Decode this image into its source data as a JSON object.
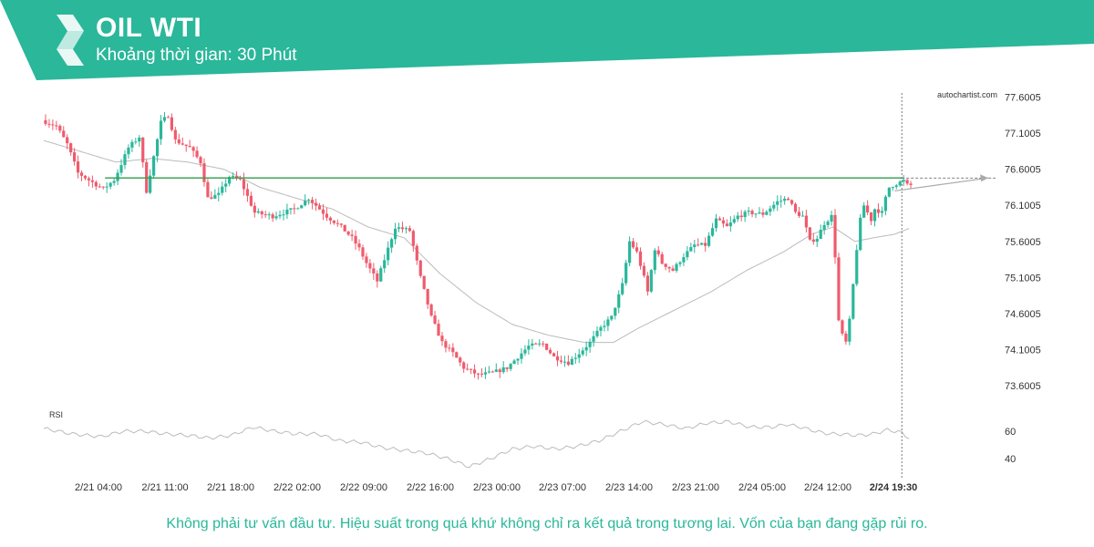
{
  "header": {
    "title": "OIL WTI",
    "subtitle": "Khoảng thời gian: 30 Phút",
    "band_color": "#2ab79a",
    "logo_icon": "autochartist-s-logo"
  },
  "watermark": "autochartist.com",
  "disclaimer": "Không phải tư vấn đầu tư. Hiệu suất trong quá khứ không chỉ ra kết quả trong tương lai. Vốn của bạn đang gặp rủi ro.",
  "colors": {
    "up": "#2ab79a",
    "down": "#ef5b6c",
    "level_line": "#2e9e4a",
    "moving_average": "#bbbbbb",
    "rsi": "#bbbbbb",
    "projection": "#aaaaaa"
  },
  "chart_data": [
    {
      "type": "candlestick",
      "y_ticks": [
        "77.6005",
        "77.1005",
        "76.6005",
        "76.1005",
        "75.6005",
        "75.1005",
        "74.6005",
        "74.1005",
        "73.6005"
      ],
      "ylim": [
        73.45,
        77.62
      ],
      "x_ticks": [
        "2/21 04:00",
        "2/21 11:00",
        "2/21 18:00",
        "2/22 02:00",
        "2/22 09:00",
        "2/22 16:00",
        "2/23 00:00",
        "2/23 07:00",
        "2/23 14:00",
        "2/23 21:00",
        "2/24 05:00",
        "2/24 12:00",
        "2/24 19:30"
      ],
      "current_time_label": "2/24 19:30",
      "horizontal_level": 76.48,
      "price_path": [
        [
          0,
          77.28
        ],
        [
          4,
          77.2
        ],
        [
          7,
          76.95
        ],
        [
          10,
          76.55
        ],
        [
          14,
          76.42
        ],
        [
          17,
          76.33
        ],
        [
          20,
          76.45
        ],
        [
          24,
          76.9
        ],
        [
          27,
          77.05
        ],
        [
          29,
          76.3
        ],
        [
          33,
          77.25
        ],
        [
          35,
          77.35
        ],
        [
          37,
          77.0
        ],
        [
          41,
          76.9
        ],
        [
          44,
          76.7
        ],
        [
          46,
          76.2
        ],
        [
          49,
          76.25
        ],
        [
          52,
          76.5
        ],
        [
          55,
          76.45
        ],
        [
          59,
          76.0
        ],
        [
          64,
          75.95
        ],
        [
          70,
          76.05
        ],
        [
          74,
          76.2
        ],
        [
          76,
          76.1
        ],
        [
          79,
          75.95
        ],
        [
          83,
          75.8
        ],
        [
          86,
          75.65
        ],
        [
          88,
          75.5
        ],
        [
          90,
          75.3
        ],
        [
          93,
          75.05
        ],
        [
          96,
          75.5
        ],
        [
          98,
          75.8
        ],
        [
          102,
          75.75
        ],
        [
          105,
          75.1
        ],
        [
          108,
          74.55
        ],
        [
          111,
          74.2
        ],
        [
          114,
          74.05
        ],
        [
          117,
          73.85
        ],
        [
          121,
          73.75
        ],
        [
          125,
          73.78
        ],
        [
          129,
          73.85
        ],
        [
          132,
          74.0
        ],
        [
          135,
          74.15
        ],
        [
          139,
          74.18
        ],
        [
          142,
          74.0
        ],
        [
          146,
          73.92
        ],
        [
          149,
          74.05
        ],
        [
          152,
          74.2
        ],
        [
          155,
          74.4
        ],
        [
          158,
          74.55
        ],
        [
          161,
          75.0
        ],
        [
          163,
          75.6
        ],
        [
          165,
          75.45
        ],
        [
          167,
          75.1
        ],
        [
          168,
          74.9
        ],
        [
          170,
          75.5
        ],
        [
          172,
          75.3
        ],
        [
          175,
          75.2
        ],
        [
          178,
          75.4
        ],
        [
          181,
          75.55
        ],
        [
          184,
          75.55
        ],
        [
          187,
          75.9
        ],
        [
          190,
          75.8
        ],
        [
          193,
          75.95
        ],
        [
          196,
          76.0
        ],
        [
          200,
          75.98
        ],
        [
          204,
          76.15
        ],
        [
          207,
          76.2
        ],
        [
          209,
          76.0
        ],
        [
          211,
          75.95
        ],
        [
          213,
          75.6
        ],
        [
          215,
          75.65
        ],
        [
          217,
          75.85
        ],
        [
          219,
          75.95
        ],
        [
          220,
          75.4
        ],
        [
          221,
          74.5
        ],
        [
          222,
          74.3
        ],
        [
          223,
          74.2
        ],
        [
          224,
          74.5
        ],
        [
          225,
          75.0
        ],
        [
          226,
          75.5
        ],
        [
          227,
          75.9
        ],
        [
          228,
          76.1
        ],
        [
          230,
          75.9
        ],
        [
          231,
          76.05
        ],
        [
          233,
          76.0
        ],
        [
          234,
          76.2
        ],
        [
          235,
          76.35
        ],
        [
          236,
          76.38
        ],
        [
          238,
          76.42
        ],
        [
          239,
          76.44
        ],
        [
          240,
          76.38
        ]
      ],
      "moving_average": [
        [
          0,
          77.0
        ],
        [
          10,
          76.85
        ],
        [
          20,
          76.7
        ],
        [
          30,
          76.75
        ],
        [
          40,
          76.7
        ],
        [
          50,
          76.6
        ],
        [
          60,
          76.35
        ],
        [
          70,
          76.2
        ],
        [
          80,
          76.05
        ],
        [
          90,
          75.8
        ],
        [
          100,
          75.65
        ],
        [
          110,
          75.15
        ],
        [
          120,
          74.75
        ],
        [
          130,
          74.45
        ],
        [
          140,
          74.3
        ],
        [
          150,
          74.2
        ],
        [
          158,
          74.2
        ],
        [
          165,
          74.4
        ],
        [
          175,
          74.65
        ],
        [
          185,
          74.9
        ],
        [
          195,
          75.2
        ],
        [
          205,
          75.45
        ],
        [
          213,
          75.7
        ],
        [
          219,
          75.8
        ],
        [
          225,
          75.6
        ],
        [
          230,
          75.65
        ],
        [
          236,
          75.7
        ],
        [
          240,
          75.78
        ]
      ],
      "projection": [
        [
          236,
          76.3
        ],
        [
          262,
          76.48
        ]
      ],
      "rsi": {
        "label": "RSI",
        "ticks": [
          "60",
          "40"
        ],
        "levels": [
          60,
          40
        ],
        "series": [
          [
            0,
            62
          ],
          [
            8,
            58
          ],
          [
            16,
            56
          ],
          [
            22,
            60
          ],
          [
            28,
            60
          ],
          [
            34,
            58
          ],
          [
            40,
            57
          ],
          [
            46,
            55
          ],
          [
            52,
            57
          ],
          [
            58,
            63
          ],
          [
            64,
            60
          ],
          [
            70,
            58
          ],
          [
            76,
            58
          ],
          [
            82,
            53
          ],
          [
            88,
            52
          ],
          [
            94,
            48
          ],
          [
            100,
            46
          ],
          [
            106,
            44
          ],
          [
            112,
            40
          ],
          [
            118,
            34
          ],
          [
            124,
            40
          ],
          [
            130,
            47
          ],
          [
            136,
            49
          ],
          [
            142,
            47
          ],
          [
            148,
            49
          ],
          [
            154,
            53
          ],
          [
            160,
            60
          ],
          [
            166,
            67
          ],
          [
            172,
            65
          ],
          [
            178,
            62
          ],
          [
            184,
            66
          ],
          [
            190,
            67
          ],
          [
            196,
            63
          ],
          [
            202,
            63
          ],
          [
            206,
            65
          ],
          [
            210,
            63
          ],
          [
            214,
            60
          ],
          [
            218,
            58
          ],
          [
            220,
            58
          ],
          [
            226,
            57
          ],
          [
            230,
            58
          ],
          [
            234,
            61
          ],
          [
            238,
            59
          ],
          [
            240,
            55
          ]
        ]
      }
    }
  ]
}
